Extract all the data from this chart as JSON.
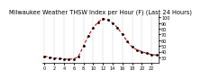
{
  "title": "Milwaukee Weather THSW Index per Hour (F) (Last 24 Hours)",
  "hours": [
    0,
    1,
    2,
    3,
    4,
    5,
    6,
    7,
    8,
    9,
    10,
    11,
    12,
    13,
    14,
    15,
    16,
    17,
    18,
    19,
    20,
    21,
    22,
    23
  ],
  "values": [
    32,
    30,
    29,
    28,
    27,
    27,
    27,
    32,
    50,
    68,
    82,
    92,
    98,
    96,
    90,
    82,
    70,
    58,
    48,
    43,
    40,
    37,
    35,
    34
  ],
  "ylim": [
    20,
    105
  ],
  "ytick_positions": [
    30,
    40,
    50,
    60,
    70,
    80,
    90,
    100
  ],
  "ytick_labels": [
    "30",
    "40",
    "50",
    "60",
    "70",
    "80",
    "90",
    "100"
  ],
  "xtick_positions": [
    0,
    2,
    4,
    6,
    8,
    10,
    12,
    14,
    16,
    18,
    20,
    22
  ],
  "xtick_labels": [
    "0",
    "2",
    "4",
    "6",
    "8",
    "10",
    "12",
    "14",
    "16",
    "18",
    "20",
    "22"
  ],
  "grid_x_positions": [
    0,
    2,
    4,
    6,
    8,
    10,
    12,
    14,
    16,
    18,
    20,
    22
  ],
  "line_color": "#cc0000",
  "dot_color": "#000000",
  "bg_color": "#ffffff",
  "grid_color": "#999999",
  "title_fontsize": 4.8,
  "tick_fontsize": 3.5,
  "line_width": 0.8,
  "dot_size": 2.0,
  "xlim": [
    -0.5,
    23.5
  ]
}
